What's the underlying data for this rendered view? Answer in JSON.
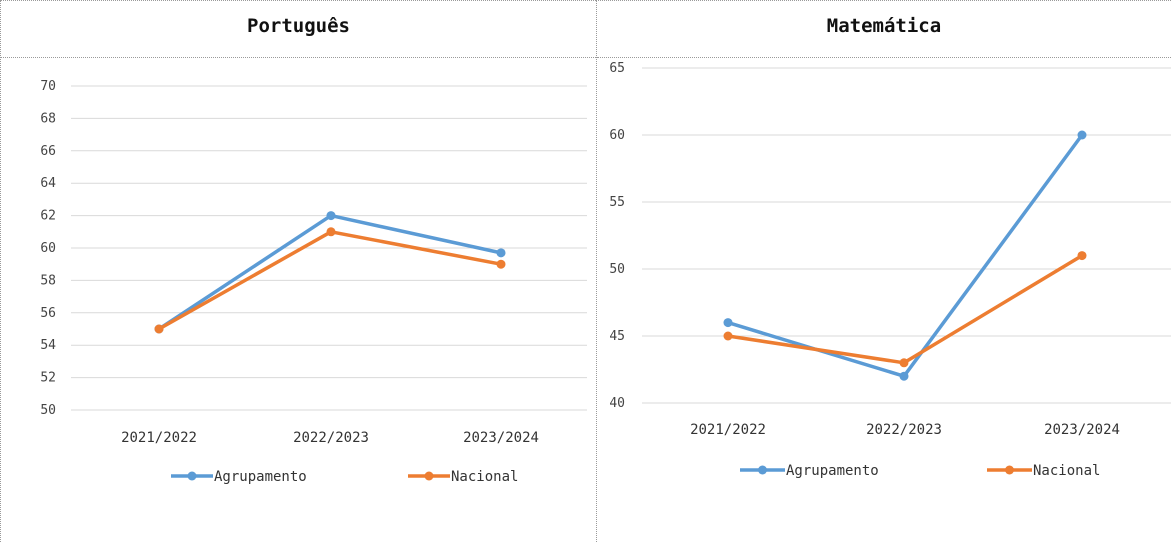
{
  "chart_data": [
    {
      "type": "line",
      "title": "Português",
      "categories": [
        "2021/2022",
        "2022/2023",
        "2023/2024"
      ],
      "ylim": [
        50,
        70
      ],
      "yticks": [
        50,
        52,
        54,
        56,
        58,
        60,
        62,
        64,
        66,
        68,
        70
      ],
      "grid": true,
      "legend_position": "bottom",
      "series": [
        {
          "name": "Agrupamento",
          "color": "#5b9bd5",
          "values": [
            55,
            62,
            59.7
          ]
        },
        {
          "name": "Nacional",
          "color": "#ed7d31",
          "values": [
            55,
            61,
            59
          ]
        }
      ]
    },
    {
      "type": "line",
      "title": "Matemática",
      "categories": [
        "2021/2022",
        "2022/2023",
        "2023/2024"
      ],
      "ylim": [
        40,
        65
      ],
      "yticks": [
        40,
        45,
        50,
        55,
        60,
        65
      ],
      "grid": true,
      "legend_position": "bottom",
      "series": [
        {
          "name": "Agrupamento",
          "color": "#5b9bd5",
          "values": [
            46,
            42,
            60
          ]
        },
        {
          "name": "Nacional",
          "color": "#ed7d31",
          "values": [
            45,
            43,
            51
          ]
        }
      ]
    }
  ]
}
